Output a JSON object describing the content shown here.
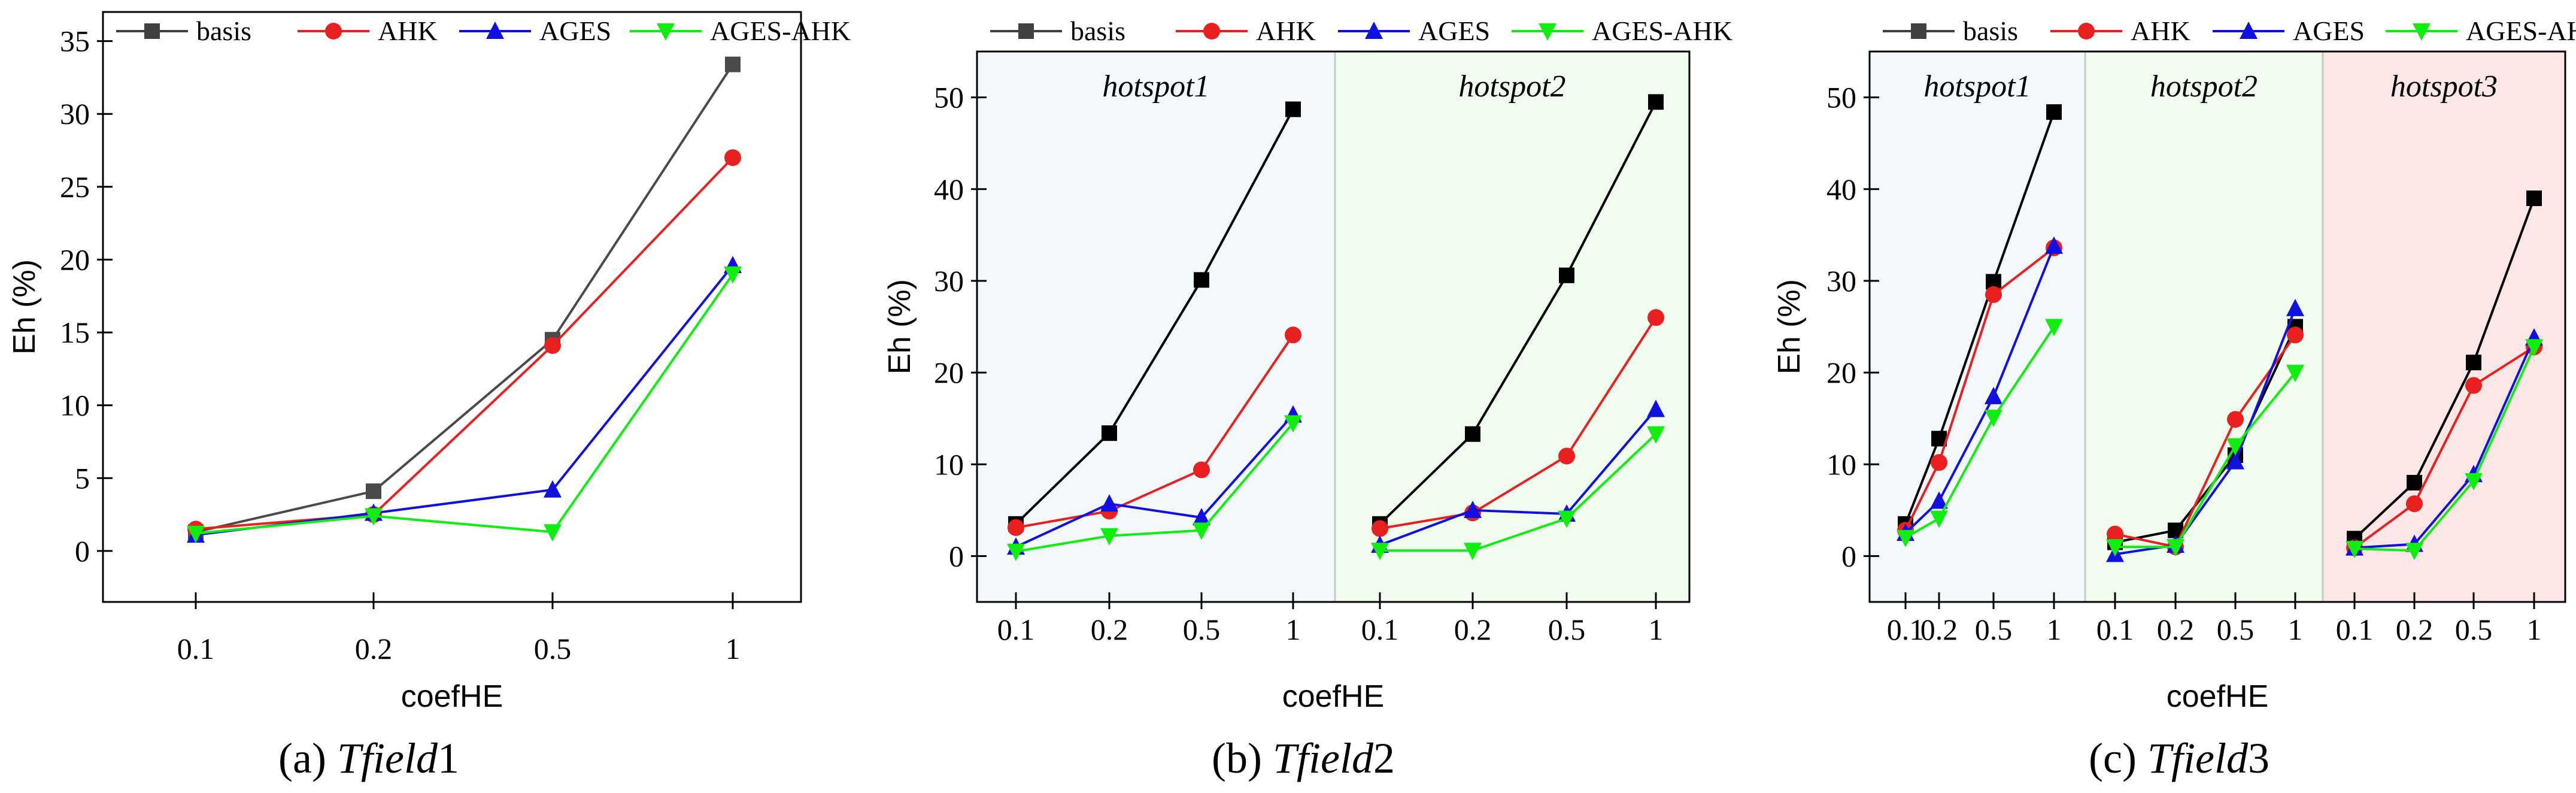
{
  "legend": [
    "basis",
    "AHK",
    "AGES",
    "AGES-AHK"
  ],
  "series_colors": {
    "basis": "#404040",
    "AHK": "#e82020",
    "AGES": "#1010e0",
    "AGES-AHK": "#10ee10"
  },
  "captions": [
    {
      "label": "(a)",
      "name": "Tfield",
      "num": "1"
    },
    {
      "label": "(b)",
      "name": "Tfield",
      "num": "2"
    },
    {
      "label": "(c)",
      "name": "Tfield",
      "num": "3"
    }
  ],
  "hotspot_names": [
    "hotspot1",
    "hotspot2",
    "hotspot3"
  ],
  "chart_data": [
    {
      "type": "line",
      "title": "(a) Tfield1",
      "xlabel": "coefHE",
      "ylabel": "Eh (%)",
      "ylim": [
        -3.5,
        37
      ],
      "yticks": [
        0,
        5,
        10,
        15,
        20,
        25,
        30,
        35
      ],
      "groups": [
        {
          "label": "",
          "bg": "#ffffff",
          "categories": [
            "0.1",
            "0.2",
            "0.5",
            "1"
          ],
          "series": [
            {
              "name": "basis",
              "values": [
                1.3,
                4.1,
                14.5,
                33.4
              ]
            },
            {
              "name": "AHK",
              "values": [
                1.5,
                2.5,
                14.1,
                27.0
              ]
            },
            {
              "name": "AGES",
              "values": [
                1.1,
                2.6,
                4.2,
                19.6
              ]
            },
            {
              "name": "AGES-AHK",
              "values": [
                1.2,
                2.4,
                1.3,
                19.0
              ]
            }
          ]
        }
      ]
    },
    {
      "type": "line",
      "title": "(b) Tfield2",
      "xlabel": "coefHE",
      "ylabel": "Eh (%)",
      "ylim": [
        -5,
        55
      ],
      "yticks": [
        0,
        10,
        20,
        30,
        40,
        50
      ],
      "groups": [
        {
          "label": "hotspot1",
          "bg": "#f3f8fc",
          "categories": [
            "0.1",
            "0.2",
            "0.5",
            "1"
          ],
          "series": [
            {
              "name": "basis",
              "values": [
                3.5,
                13.4,
                30.1,
                48.7
              ]
            },
            {
              "name": "AHK",
              "values": [
                3.1,
                4.9,
                9.4,
                24.1
              ]
            },
            {
              "name": "AGES",
              "values": [
                1.0,
                5.7,
                4.2,
                15.4
              ]
            },
            {
              "name": "AGES-AHK",
              "values": [
                0.5,
                2.2,
                2.8,
                14.5
              ]
            }
          ]
        },
        {
          "label": "hotspot2",
          "bg": "#f0fcee",
          "categories": [
            "0.1",
            "0.2",
            "0.5",
            "1"
          ],
          "series": [
            {
              "name": "basis",
              "values": [
                3.5,
                13.3,
                30.6,
                49.5
              ]
            },
            {
              "name": "AHK",
              "values": [
                3.0,
                4.7,
                10.9,
                26.0
              ]
            },
            {
              "name": "AGES",
              "values": [
                1.2,
                5.0,
                4.6,
                16.0
              ]
            },
            {
              "name": "AGES-AHK",
              "values": [
                0.6,
                0.6,
                4.1,
                13.3
              ]
            }
          ]
        }
      ]
    },
    {
      "type": "line",
      "title": "(c) Tfield3",
      "xlabel": "coefHE",
      "ylabel": "Eh (%)",
      "ylim": [
        -5,
        55
      ],
      "yticks": [
        0,
        10,
        20,
        30,
        40,
        50
      ],
      "groups": [
        {
          "label": "hotspot1",
          "bg": "#f3f8fc",
          "categories": [
            "0.1",
            "0.2",
            "0.5",
            "1"
          ],
          "series": [
            {
              "name": "basis",
              "values": [
                3.5,
                12.8,
                29.9,
                48.4
              ]
            },
            {
              "name": "AHK",
              "values": [
                2.8,
                10.2,
                28.5,
                33.6
              ]
            },
            {
              "name": "AGES",
              "values": [
                2.5,
                6.0,
                17.4,
                33.8
              ]
            },
            {
              "name": "AGES-AHK",
              "values": [
                2.0,
                4.1,
                15.1,
                25.0
              ]
            }
          ]
        },
        {
          "label": "hotspot2",
          "bg": "#f0fcee",
          "categories": [
            "0.1",
            "0.2",
            "0.5",
            "1"
          ],
          "series": [
            {
              "name": "basis",
              "values": [
                1.5,
                2.8,
                11.0,
                25.0
              ]
            },
            {
              "name": "AHK",
              "values": [
                2.4,
                1.0,
                14.9,
                24.1
              ]
            },
            {
              "name": "AGES",
              "values": [
                0.2,
                1.2,
                10.3,
                27.0
              ]
            },
            {
              "name": "AGES-AHK",
              "values": [
                1.0,
                1.0,
                12.0,
                20.0
              ]
            }
          ]
        },
        {
          "label": "hotspot3",
          "bg": "#fce6e6",
          "categories": [
            "0.1",
            "0.2",
            "0.5",
            "1"
          ],
          "series": [
            {
              "name": "basis",
              "values": [
                1.9,
                8.0,
                21.1,
                39.0
              ]
            },
            {
              "name": "AHK",
              "values": [
                0.9,
                5.7,
                18.6,
                22.8
              ]
            },
            {
              "name": "AGES",
              "values": [
                0.9,
                1.3,
                8.9,
                23.8
              ]
            },
            {
              "name": "AGES-AHK",
              "values": [
                0.8,
                0.6,
                8.2,
                22.8
              ]
            }
          ]
        }
      ]
    }
  ]
}
